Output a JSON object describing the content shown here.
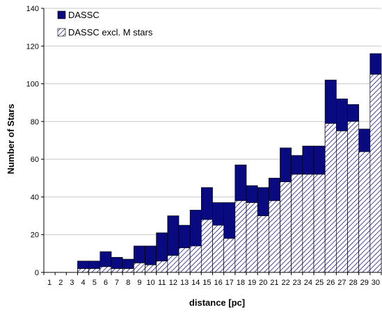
{
  "chart_data": {
    "type": "bar",
    "subtype": "stacked",
    "title": "",
    "xlabel": "distance [pc]",
    "ylabel": "Number of Stars",
    "categories": [
      "1",
      "2",
      "3",
      "4",
      "5",
      "6",
      "7",
      "8",
      "9",
      "10",
      "11",
      "12",
      "13",
      "14",
      "15",
      "16",
      "17",
      "18",
      "19",
      "20",
      "21",
      "22",
      "23",
      "24",
      "25",
      "26",
      "27",
      "28",
      "29",
      "30"
    ],
    "ylim": [
      0,
      140
    ],
    "yticks": [
      0,
      20,
      40,
      60,
      80,
      100,
      120,
      140
    ],
    "grid": true,
    "legend_position": "top-left",
    "series": [
      {
        "name": "DASSC",
        "values": [
          0,
          0,
          0,
          6,
          6,
          11,
          8,
          7,
          14,
          14,
          21,
          30,
          25,
          33,
          45,
          37,
          37,
          57,
          46,
          45,
          50,
          66,
          62,
          67,
          67,
          102,
          92,
          89,
          76,
          116
        ],
        "color": "#0a0a80",
        "fill": "solid"
      },
      {
        "name": "DASSC excl. M stars",
        "values": [
          0,
          0,
          0,
          2,
          2,
          3,
          2,
          2,
          5,
          4,
          6,
          9,
          13,
          14,
          28,
          25,
          18,
          38,
          37,
          30,
          38,
          48,
          52,
          52,
          52,
          79,
          75,
          80,
          64,
          105
        ],
        "color": "#0a0a80",
        "fill": "hatched"
      }
    ]
  }
}
